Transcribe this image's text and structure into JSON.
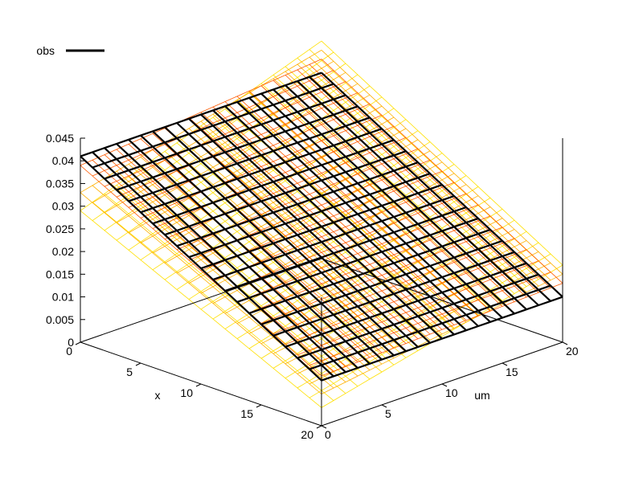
{
  "chart_data": {
    "type": "surface",
    "legend": {
      "entries": [
        {
          "name": "obs",
          "color": "#000000"
        }
      ],
      "position": "top-left"
    },
    "x_axis": {
      "label": "x",
      "ticks": [
        "0",
        "5",
        "10",
        "15",
        "20"
      ],
      "range": [
        0,
        20
      ]
    },
    "y_axis": {
      "label": "um",
      "ticks": [
        "0",
        "5",
        "10",
        "15",
        "20"
      ],
      "range": [
        0,
        20
      ]
    },
    "z_axis": {
      "label": "",
      "ticks": [
        "0.005",
        "0.01",
        "0.015",
        "0.02",
        "0.025",
        "0.03",
        "0.035",
        "0.04",
        "0.045"
      ],
      "range": [
        0,
        0.045
      ]
    },
    "surfaces": [
      {
        "name": "obs",
        "color": "#000000",
        "emphasis": "primary",
        "corner_values": {
          "x0_um0": 0.041,
          "x20_um0": 0.01,
          "x0_um20": 0.041,
          "x20_um20": 0.01
        }
      },
      {
        "name": "",
        "color": "#ff5a00",
        "emphasis": "ensemble",
        "corner_values": {
          "x0_um0": 0.039,
          "x20_um0": 0.011,
          "x0_um20": 0.044,
          "x20_um20": 0.013
        }
      },
      {
        "name": "",
        "color": "#ffb000",
        "emphasis": "ensemble",
        "corner_values": {
          "x0_um0": 0.033,
          "x20_um0": 0.007,
          "x0_um20": 0.046,
          "x20_um20": 0.015
        }
      },
      {
        "name": "",
        "color": "#ffe000",
        "emphasis": "ensemble",
        "corner_values": {
          "x0_um0": 0.029,
          "x20_um0": 0.004,
          "x0_um20": 0.048,
          "x20_um20": 0.017
        }
      }
    ],
    "grid": false,
    "colors": {
      "primary": "#000000",
      "ensemble_dark": "#ff5a00",
      "ensemble_mid": "#ffb000",
      "ensemble_light": "#ffe000"
    }
  }
}
